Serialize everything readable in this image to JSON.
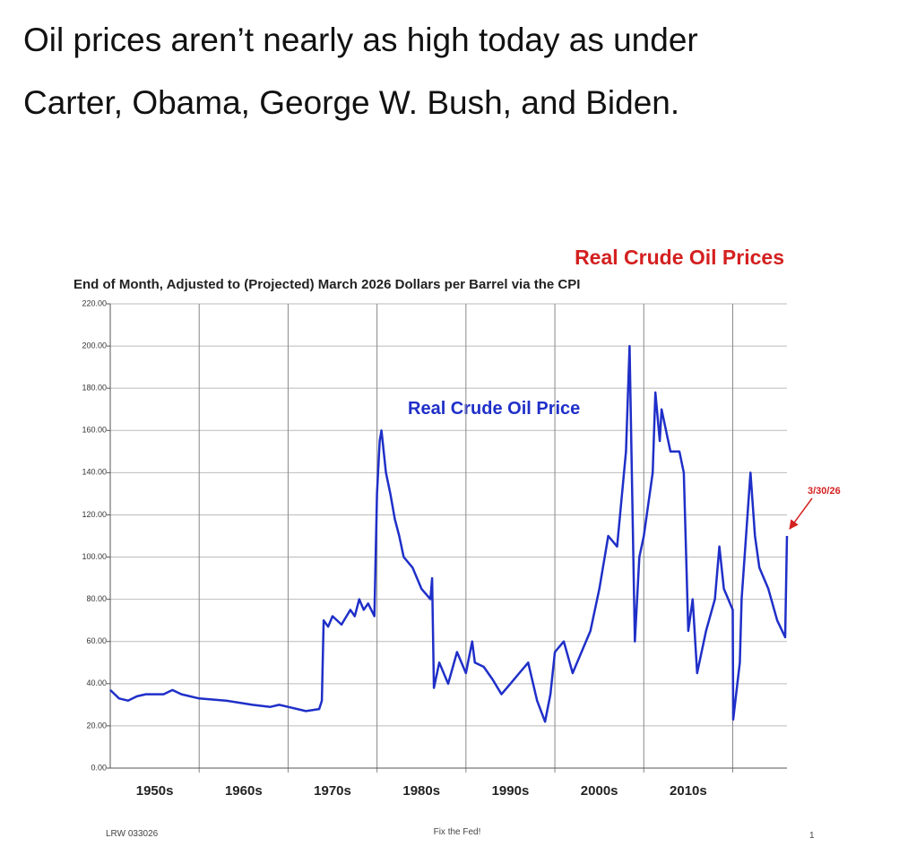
{
  "post": {
    "text_lines": [
      "Oil prices aren’t nearly as high today as under",
      "Carter, Obama, George W. Bush, and Biden."
    ]
  },
  "chart_data": {
    "type": "line",
    "title": "Real Crude Oil Prices",
    "subtitle": "End of Month, Adjusted to (Projected) March 2026 Dollars per Barrel via the CPI",
    "annotation": "3/30/26",
    "footer_left": "LRW 033026",
    "footer_center": "Fix the Fed!",
    "footer_right": "1",
    "x": [
      1950,
      1951,
      1952,
      1953,
      1954,
      1956,
      1957,
      1958,
      1960,
      1963,
      1966,
      1968,
      1969,
      1970,
      1972,
      1973.5,
      1973.8,
      1974,
      1974.5,
      1975,
      1976,
      1977,
      1977.5,
      1978,
      1978.5,
      1979,
      1979.7,
      1980,
      1980.3,
      1980.5,
      1981,
      1981.5,
      1982,
      1982.5,
      1983,
      1984,
      1985,
      1986,
      1986.2,
      1986.4,
      1987,
      1988,
      1989,
      1990,
      1990.7,
      1991,
      1992,
      1993,
      1994,
      1995,
      1996,
      1997,
      1998,
      1998.9,
      1999.5,
      2000,
      2001,
      2002,
      2003,
      2004,
      2005,
      2006,
      2007,
      2008,
      2008.4,
      2009,
      2009.5,
      2010,
      2011,
      2011.3,
      2011.8,
      2012,
      2013,
      2014,
      2014.5,
      2015,
      2015.5,
      2016,
      2017,
      2018,
      2018.5,
      2019,
      2020,
      2020.05,
      2020.8,
      2021,
      2022,
      2022.5,
      2023,
      2024,
      2025,
      2025.9,
      2026.1
    ],
    "series": [
      {
        "name": "Real Crude Oil Price",
        "color": "#1f2fc8",
        "values": [
          37,
          33,
          32,
          34,
          35,
          35,
          37,
          35,
          33,
          32,
          30,
          29,
          30,
          29,
          27,
          28,
          32,
          70,
          67,
          72,
          68,
          75,
          72,
          80,
          75,
          78,
          72,
          130,
          155,
          160,
          140,
          130,
          118,
          110,
          100,
          95,
          85,
          80,
          90,
          38,
          50,
          40,
          55,
          45,
          60,
          50,
          48,
          42,
          35,
          40,
          45,
          50,
          32,
          22,
          35,
          55,
          60,
          45,
          55,
          65,
          85,
          110,
          105,
          150,
          200,
          60,
          100,
          110,
          140,
          178,
          155,
          170,
          150,
          150,
          140,
          65,
          80,
          45,
          65,
          80,
          105,
          85,
          75,
          23,
          50,
          80,
          140,
          110,
          95,
          85,
          70,
          62,
          110
        ]
      }
    ],
    "xlim": [
      1950,
      2026.1
    ],
    "xticks": [
      {
        "value": 1955,
        "label": "1950s"
      },
      {
        "value": 1965,
        "label": "1960s"
      },
      {
        "value": 1975,
        "label": "1970s"
      },
      {
        "value": 1985,
        "label": "1980s"
      },
      {
        "value": 1995,
        "label": "1990s"
      },
      {
        "value": 2005,
        "label": "2000s"
      },
      {
        "value": 2015,
        "label": "2010s"
      }
    ],
    "xgrid": [
      1960,
      1970,
      1980,
      1990,
      2000,
      2010,
      2020
    ],
    "ylim": [
      0,
      220
    ],
    "yticks": [
      {
        "value": 0,
        "label": "0.00"
      },
      {
        "value": 20,
        "label": "20.00"
      },
      {
        "value": 40,
        "label": "40.00"
      },
      {
        "value": 60,
        "label": "60.00"
      },
      {
        "value": 80,
        "label": "80.00"
      },
      {
        "value": 100,
        "label": "100.00"
      },
      {
        "value": 120,
        "label": "120.00"
      },
      {
        "value": 140,
        "label": "140.00"
      },
      {
        "value": 160,
        "label": "160.00"
      },
      {
        "value": 180,
        "label": "180.00"
      },
      {
        "value": 200,
        "label": "200.00"
      },
      {
        "value": 220,
        "label": "220.00"
      }
    ],
    "grid": true
  }
}
